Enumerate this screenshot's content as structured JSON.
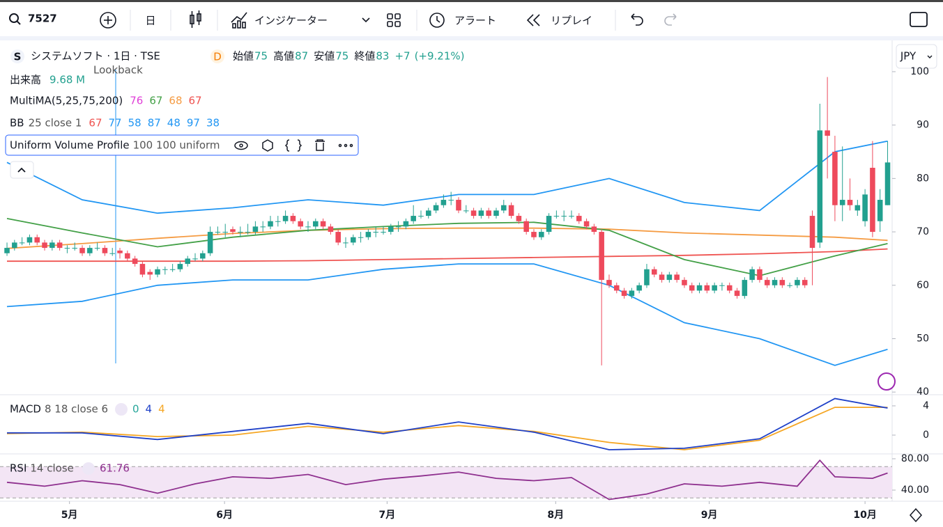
{
  "toolbar": {
    "symbol": "7527",
    "interval": "日",
    "indicators": "インジケーター",
    "alert": "アラート",
    "replay": "リプレイ"
  },
  "legend": {
    "name": "システムソフト · 1日 · TSE",
    "badge": "D",
    "ohlc": [
      {
        "label": "始値",
        "value": "75"
      },
      {
        "label": "高値",
        "value": "87"
      },
      {
        "label": "安値",
        "value": "75"
      },
      {
        "label": "終値",
        "value": "83"
      }
    ],
    "change": "+7",
    "change_pct": "(+9.21%)",
    "volume_label": "出来高",
    "volume": "9.68 M",
    "lookback": "Lookback",
    "ma_label": "MultiMA(5,25,75,200)",
    "ma_values": [
      {
        "text": "76",
        "color": "#e040d8"
      },
      {
        "text": "67",
        "color": "#43a047"
      },
      {
        "text": "68",
        "color": "#f59b42"
      },
      {
        "text": "67",
        "color": "#ef5350"
      }
    ],
    "bb_label": "BB",
    "bb_params": "25 close 1",
    "bb_values": [
      {
        "text": "67",
        "color": "#ef5350"
      },
      {
        "text": "77",
        "color": "#2196f3"
      },
      {
        "text": "58",
        "color": "#2196f3"
      },
      {
        "text": "87",
        "color": "#2196f3"
      },
      {
        "text": "48",
        "color": "#2196f3"
      },
      {
        "text": "97",
        "color": "#2196f3"
      },
      {
        "text": "38",
        "color": "#2196f3"
      }
    ],
    "vp_label": "Uniform Volume Profile",
    "vp_params": "100 100 uniform",
    "currency": "JPY"
  },
  "chart_data": [
    {
      "type": "candlestick",
      "up_color": "#22a08f",
      "down_color": "#ee4a5c",
      "xlim": [
        -0.93,
        117.6
      ],
      "xticks": [
        {
          "value": 8.3,
          "label": "5月"
        },
        {
          "value": 28.9,
          "label": "6月"
        },
        {
          "value": 50.5,
          "label": "7月"
        },
        {
          "value": 72.9,
          "label": "8月"
        },
        {
          "value": 93.3,
          "label": "9月"
        },
        {
          "value": 114,
          "label": "10月"
        }
      ],
      "ylim": [
        39.5,
        105.6
      ],
      "yticks": [
        40,
        50,
        60,
        70,
        80,
        90,
        100
      ],
      "ohlc": [
        [
          66,
          68,
          65.5,
          67
        ],
        [
          67,
          68.5,
          66.5,
          68
        ],
        [
          68,
          69,
          67.5,
          68
        ],
        [
          68,
          69.5,
          67.5,
          69
        ],
        [
          69,
          69.5,
          67.5,
          68
        ],
        [
          68,
          68.5,
          66.5,
          67
        ],
        [
          67,
          68.5,
          66.5,
          68
        ],
        [
          68,
          68.5,
          66.5,
          67
        ],
        [
          67,
          67.5,
          66,
          67
        ],
        [
          67,
          68,
          66.5,
          67
        ],
        [
          67,
          67.5,
          65.5,
          66
        ],
        [
          66,
          67.5,
          65.5,
          67
        ],
        [
          67,
          68,
          66.5,
          67
        ],
        [
          67,
          67.5,
          65.5,
          66
        ],
        [
          66,
          67,
          65.5,
          66
        ],
        [
          66.5,
          67,
          65,
          66
        ],
        [
          66,
          66.5,
          64.5,
          65
        ],
        [
          65,
          65.5,
          63.5,
          64
        ],
        [
          64,
          64.5,
          61.5,
          62
        ],
        [
          62.5,
          63,
          61,
          62
        ],
        [
          62,
          63.5,
          61.5,
          63
        ],
        [
          63,
          63.5,
          62,
          63
        ],
        [
          63,
          64,
          62.5,
          63
        ],
        [
          63,
          64.5,
          62.5,
          64
        ],
        [
          64,
          65.5,
          63.5,
          65
        ],
        [
          65,
          66,
          64.5,
          65
        ],
        [
          65,
          66.5,
          64.5,
          66
        ],
        [
          66,
          71,
          65.5,
          70
        ],
        [
          70,
          71,
          69.5,
          70
        ],
        [
          70,
          71.5,
          69,
          70
        ],
        [
          70.5,
          71,
          69.5,
          70
        ],
        [
          70,
          71,
          69,
          70
        ],
        [
          70,
          71.5,
          69.5,
          70
        ],
        [
          70,
          72,
          69.5,
          71
        ],
        [
          71,
          72,
          70,
          71
        ],
        [
          71,
          73,
          70.5,
          72
        ],
        [
          72,
          73,
          71,
          72
        ],
        [
          72,
          74,
          71.5,
          73
        ],
        [
          73,
          73.5,
          71.5,
          72
        ],
        [
          72,
          72.5,
          70.5,
          71
        ],
        [
          71,
          72,
          70,
          71
        ],
        [
          71,
          72.5,
          70.5,
          72
        ],
        [
          72,
          72.5,
          70.5,
          71
        ],
        [
          71,
          71.5,
          69.5,
          70
        ],
        [
          70,
          70.5,
          67.5,
          68
        ],
        [
          68,
          69,
          67,
          68
        ],
        [
          68,
          69.5,
          67.5,
          69
        ],
        [
          69,
          70,
          68,
          69
        ],
        [
          69,
          70.5,
          68.5,
          70
        ],
        [
          70,
          71,
          69,
          70
        ],
        [
          70,
          71,
          69.5,
          70
        ],
        [
          70,
          71.5,
          69.5,
          71
        ],
        [
          71,
          72,
          70,
          71
        ],
        [
          71,
          72.5,
          70.5,
          72
        ],
        [
          72,
          75,
          71.5,
          73
        ],
        [
          73,
          74,
          72.5,
          73
        ],
        [
          73,
          74.5,
          72.5,
          74
        ],
        [
          74,
          75.5,
          73.5,
          75
        ],
        [
          75,
          77,
          74.5,
          76
        ],
        [
          76,
          77.5,
          75,
          76
        ],
        [
          76,
          76.5,
          73.5,
          74
        ],
        [
          74,
          75,
          73.5,
          74
        ],
        [
          74,
          74.5,
          72.5,
          73
        ],
        [
          73,
          74.5,
          72.5,
          74
        ],
        [
          74,
          74.5,
          72.5,
          73
        ],
        [
          73,
          74.5,
          72.5,
          74
        ],
        [
          74,
          76,
          73.5,
          75
        ],
        [
          75,
          75.5,
          72.5,
          73
        ],
        [
          73,
          73.5,
          71.5,
          72
        ],
        [
          72,
          72.5,
          69.5,
          70
        ],
        [
          70,
          70.5,
          68.5,
          69
        ],
        [
          69,
          70.5,
          68.5,
          70
        ],
        [
          70,
          73.5,
          69.5,
          73
        ],
        [
          73,
          74,
          72.5,
          73
        ],
        [
          73,
          74,
          72,
          73
        ],
        [
          73,
          74,
          72.5,
          73
        ],
        [
          73,
          73.5,
          71.5,
          72
        ],
        [
          72,
          72.5,
          70.5,
          71
        ],
        [
          71,
          71.5,
          69.5,
          70
        ],
        [
          70,
          70.5,
          45,
          61
        ],
        [
          61,
          62,
          59.5,
          60
        ],
        [
          60,
          60.5,
          58.5,
          59
        ],
        [
          59,
          59.5,
          57.5,
          58
        ],
        [
          58,
          59.5,
          57.5,
          59
        ],
        [
          59,
          60.5,
          58.5,
          60
        ],
        [
          60,
          64,
          59.5,
          63
        ],
        [
          63,
          63.5,
          61.5,
          62
        ],
        [
          62,
          62.5,
          60.5,
          61
        ],
        [
          61,
          62.5,
          60.5,
          62
        ],
        [
          62,
          62.5,
          60.5,
          61
        ],
        [
          61,
          61.5,
          59.5,
          60
        ],
        [
          60,
          60.5,
          58.5,
          59
        ],
        [
          59,
          60.5,
          58.5,
          60
        ],
        [
          60,
          60.5,
          58.5,
          59
        ],
        [
          59,
          60.5,
          58.5,
          60
        ],
        [
          60,
          60.5,
          59,
          60
        ],
        [
          60,
          60.5,
          58.5,
          59
        ],
        [
          59,
          59.5,
          57.5,
          58
        ],
        [
          58,
          61.5,
          57.5,
          61
        ],
        [
          61,
          63.5,
          60.5,
          63
        ],
        [
          63,
          63.5,
          60.5,
          61
        ],
        [
          61,
          61.5,
          59.5,
          60
        ],
        [
          60,
          61.5,
          59.5,
          61
        ],
        [
          61,
          61.5,
          59.5,
          60
        ],
        [
          60,
          60.5,
          59.5,
          60
        ],
        [
          60,
          61.5,
          59.5,
          61
        ],
        [
          61,
          61.5,
          59.5,
          60
        ],
        [
          73,
          74,
          60,
          67
        ],
        [
          68,
          94,
          67,
          89
        ],
        [
          89,
          99,
          80,
          88
        ],
        [
          85,
          88,
          72,
          75
        ],
        [
          75,
          86,
          72,
          76
        ],
        [
          76,
          80,
          74,
          75
        ],
        [
          74,
          76,
          73,
          75
        ],
        [
          72,
          78,
          71,
          77
        ],
        [
          82,
          87,
          69,
          70
        ],
        [
          72,
          78,
          70,
          76
        ],
        [
          75,
          87,
          75,
          83
        ]
      ],
      "series": [
        {
          "color": "#2196f3",
          "x": [
            0,
            10,
            20,
            30,
            40,
            50,
            60,
            70,
            80,
            90,
            100,
            110,
            117
          ],
          "values": [
            83,
            76,
            73.5,
            74.5,
            76,
            75,
            77,
            77,
            80,
            75.5,
            74,
            85,
            87
          ]
        },
        {
          "color": "#2196f3",
          "x": [
            0,
            10,
            20,
            30,
            40,
            50,
            60,
            70,
            80,
            90,
            100,
            110,
            117
          ],
          "values": [
            56,
            57,
            60,
            61,
            61,
            63,
            64,
            64,
            60,
            53,
            50,
            45,
            48
          ]
        },
        {
          "color": "#ef5350",
          "x": [
            0,
            10,
            20,
            30,
            40,
            50,
            60,
            70,
            80,
            90,
            100,
            110,
            117
          ],
          "values": [
            64.5,
            64.5,
            64.5,
            64.5,
            64.6,
            64.8,
            65,
            65.2,
            65.4,
            65.6,
            65.9,
            66.3,
            66.8
          ]
        },
        {
          "color": "#f59b42",
          "x": [
            0,
            10,
            20,
            30,
            40,
            50,
            60,
            70,
            80,
            90,
            100,
            110,
            117
          ],
          "values": [
            66.9,
            67.8,
            68.8,
            69.7,
            70.3,
            70.6,
            70.7,
            70.7,
            70.5,
            69.8,
            69.4,
            69,
            68.4
          ]
        },
        {
          "color": "#43a047",
          "x": [
            0,
            10,
            20,
            30,
            40,
            50,
            60,
            70,
            80,
            90,
            100,
            110,
            117
          ],
          "values": [
            72.5,
            69.8,
            67.2,
            69,
            70.3,
            71,
            71.6,
            71.8,
            70.3,
            64.8,
            61.8,
            65.5,
            67.8
          ]
        }
      ]
    },
    {
      "type": "line",
      "title": "MACD",
      "params": "8 18 close 6",
      "legend_values": [
        {
          "text": "0",
          "color": "#26a69a"
        },
        {
          "text": "4",
          "color": "#1e40c8"
        },
        {
          "text": "4",
          "color": "#f5a623"
        }
      ],
      "xlim": [
        -0.93,
        117.6
      ],
      "ylim": [
        -2.57,
        5.52
      ],
      "yticks": [
        0,
        4
      ],
      "series": [
        {
          "color": "#f5a623",
          "x": [
            0,
            10,
            20,
            30,
            40,
            50,
            60,
            70,
            80,
            90,
            100,
            110,
            117
          ],
          "values": [
            0.2,
            0.4,
            -0.2,
            0,
            1.2,
            0.4,
            1.3,
            0.5,
            -1,
            -2,
            -0.7,
            3.8,
            3.8
          ]
        },
        {
          "color": "#1e40c8",
          "x": [
            0,
            10,
            20,
            30,
            40,
            50,
            60,
            70,
            80,
            90,
            100,
            110,
            117
          ],
          "values": [
            0.3,
            0.3,
            -0.6,
            0.5,
            1.6,
            0.2,
            1.8,
            0.4,
            -2,
            -1.8,
            -0.5,
            5,
            3.7
          ]
        }
      ]
    },
    {
      "type": "line",
      "title": "RSI",
      "params": "14 close",
      "legend_values": [
        {
          "text": "61.76",
          "color": "#8e2f8e"
        }
      ],
      "xlim": [
        -0.93,
        117.6
      ],
      "ylim": [
        25.8,
        86.2
      ],
      "yticks": [
        {
          "value": 80,
          "label": "80.00"
        },
        {
          "value": 40,
          "label": "40.00"
        }
      ],
      "band": [
        30,
        70
      ],
      "band_color": "#f3e5f5",
      "series": [
        {
          "color": "#8e2f8e",
          "x": [
            0,
            5,
            10,
            15,
            20,
            25,
            30,
            35,
            40,
            45,
            50,
            55,
            60,
            65,
            70,
            75,
            80,
            85,
            90,
            95,
            100,
            105,
            108,
            110,
            115,
            117
          ],
          "values": [
            50,
            45,
            52,
            47,
            36,
            48,
            57,
            55,
            60,
            47,
            54,
            58,
            63,
            55,
            52,
            56,
            28,
            35,
            48,
            45,
            50,
            45,
            78,
            57,
            55,
            61.76
          ]
        }
      ]
    }
  ]
}
